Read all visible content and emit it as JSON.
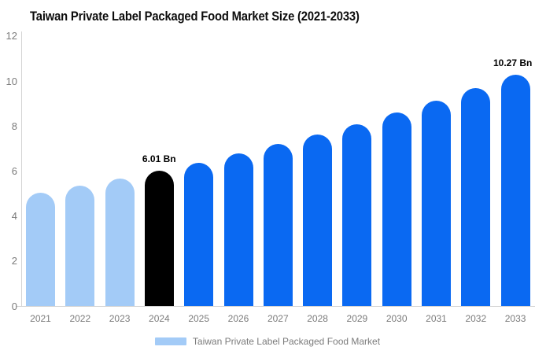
{
  "title": "Taiwan Private Label Packaged Food Market Size (2021-2033)",
  "legend": {
    "items": [
      {
        "label": "Taiwan Private Label Packaged Food Market",
        "swatch_color": "#A3CBF7"
      }
    ]
  },
  "colors": {
    "historical_bar": "#A3CBF7",
    "base_year_bar": "#000000",
    "forecast_bar": "#0A69F2",
    "axis_line": "#D4D4D4",
    "tick_text": "#7B7B7B",
    "value_label_text": "#000000",
    "title_text": "#0C0C0C",
    "background": "#FFFFFF"
  },
  "chart_data": {
    "type": "bar",
    "title": "Taiwan Private Label Packaged Food Market Size (2021-2033)",
    "categories": [
      "2021",
      "2022",
      "2023",
      "2024",
      "2025",
      "2026",
      "2027",
      "2028",
      "2029",
      "2030",
      "2031",
      "2032",
      "2033"
    ],
    "values": [
      5.03,
      5.34,
      5.67,
      6.01,
      6.38,
      6.77,
      7.19,
      7.63,
      8.09,
      8.59,
      9.12,
      9.68,
      10.27
    ],
    "value_suffix": "Bn",
    "bar_colors": [
      "#A3CBF7",
      "#A3CBF7",
      "#A3CBF7",
      "#000000",
      "#0A69F2",
      "#0A69F2",
      "#0A69F2",
      "#0A69F2",
      "#0A69F2",
      "#0A69F2",
      "#0A69F2",
      "#0A69F2",
      "#0A69F2"
    ],
    "annotations": [
      {
        "category": "2024",
        "text": "6.01 Bn"
      },
      {
        "category": "2033",
        "text": "10.27 Bn"
      }
    ],
    "xlabel": "",
    "ylabel": "",
    "ylim": [
      0,
      12
    ],
    "yticks": [
      0,
      2,
      4,
      6,
      8,
      10,
      12
    ],
    "grid": false,
    "legend_position": "bottom"
  }
}
